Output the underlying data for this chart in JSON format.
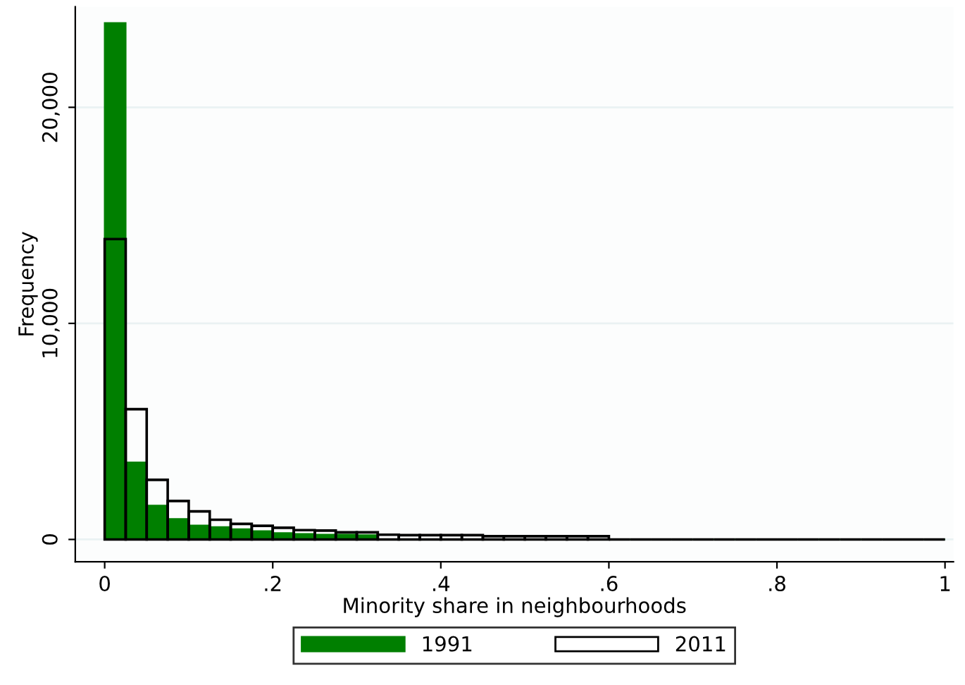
{
  "chart_data": {
    "type": "histogram",
    "xlabel": "Minority share in neighbourhoods",
    "ylabel": "Frequency",
    "bins": [
      0,
      0.025,
      0.05,
      0.075,
      0.1,
      0.125,
      0.15,
      0.175,
      0.2,
      0.225,
      0.25,
      0.275,
      0.3,
      0.325,
      0.35,
      0.375,
      0.4,
      0.425,
      0.45,
      0.475,
      0.5,
      0.525,
      0.55,
      0.575,
      0.6,
      0.625,
      0.65,
      0.675,
      0.7,
      0.725,
      0.75,
      0.775,
      0.8,
      0.825,
      0.85,
      0.875,
      0.9,
      0.925,
      0.95,
      0.975,
      1
    ],
    "series": [
      {
        "name": "1991",
        "color": "#007f00",
        "values": [
          23900,
          3570,
          1570,
          950,
          650,
          570,
          480,
          390,
          300,
          260,
          220,
          220,
          200,
          null,
          null,
          null,
          null,
          null,
          null,
          null,
          null,
          null,
          null,
          null,
          0,
          0,
          0,
          0,
          0,
          0,
          0,
          0,
          0,
          0,
          0,
          0,
          0,
          0,
          0,
          0
        ]
      },
      {
        "name": "2011",
        "color": "#000000",
        "values": [
          13900,
          6030,
          2760,
          1780,
          1300,
          910,
          720,
          630,
          540,
          430,
          410,
          330,
          330,
          220,
          200,
          200,
          200,
          200,
          150,
          150,
          150,
          150,
          150,
          150,
          0,
          0,
          0,
          0,
          0,
          0,
          0,
          0,
          0,
          0,
          0,
          0,
          0,
          0,
          0,
          0
        ]
      }
    ],
    "xlim": [
      -0.035,
      1.01
    ],
    "ylim": [
      -1030,
      24650
    ],
    "xticks": [
      0,
      {
        "value": 0.2,
        "label": ".2"
      },
      {
        "value": 0.4,
        "label": ".4"
      },
      {
        "value": 0.6,
        "label": ".6"
      },
      {
        "value": 0.8,
        "label": ".8"
      },
      1
    ],
    "yticks": [
      0,
      {
        "value": 10000,
        "label": "10,000"
      },
      {
        "value": 20000,
        "label": "20,000"
      }
    ],
    "grid": "y",
    "legend": "bottom"
  }
}
